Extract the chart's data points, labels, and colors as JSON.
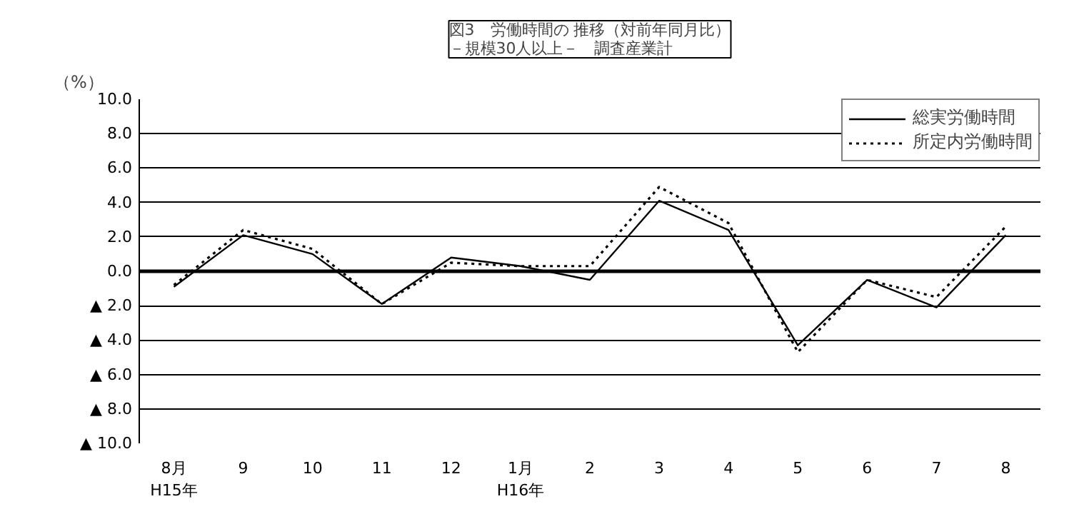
{
  "chart_data": {
    "type": "line",
    "title": "図3　労働時間の 推移（対前年同月比）",
    "subtitle": "－規模30人以上－　調査産業計",
    "ylabel": "（%）",
    "categories": [
      "8月\nH15年",
      "9",
      "10",
      "11",
      "12",
      "1月\nH16年",
      "2",
      "3",
      "4",
      "5",
      "6",
      "7",
      "8"
    ],
    "series": [
      {
        "name": "総実労働時間",
        "color": "#000000",
        "line_style": "solid",
        "values": [
          -0.9,
          2.1,
          1.0,
          -1.9,
          0.8,
          0.3,
          -0.5,
          4.1,
          2.4,
          -4.3,
          -0.5,
          -2.1,
          2.1
        ]
      },
      {
        "name": "所定内労働時間",
        "color": "#000000",
        "line_style": "dotted",
        "values": [
          -0.8,
          2.4,
          1.3,
          -1.9,
          0.5,
          0.3,
          0.3,
          4.9,
          2.8,
          -4.7,
          -0.5,
          -1.5,
          2.6
        ]
      }
    ],
    "ylim": [
      -10,
      10
    ],
    "yticks": [
      {
        "value": 10,
        "label": "10.0"
      },
      {
        "value": 8,
        "label": "8.0"
      },
      {
        "value": 6,
        "label": "6.0"
      },
      {
        "value": 4,
        "label": "4.0"
      },
      {
        "value": 2,
        "label": "2.0"
      },
      {
        "value": 0,
        "label": "0.0"
      },
      {
        "value": -2,
        "label": "▲ 2.0"
      },
      {
        "value": -4,
        "label": "▲ 4.0"
      },
      {
        "value": -6,
        "label": "▲ 6.0"
      },
      {
        "value": -8,
        "label": "▲ 8.0"
      },
      {
        "value": -10,
        "label": "▲ 10.0"
      }
    ],
    "ref_lines": [
      {
        "axis": "y",
        "value": 0,
        "color": "#000000"
      }
    ],
    "grid": "y",
    "legend": "top right",
    "marker": "none"
  }
}
